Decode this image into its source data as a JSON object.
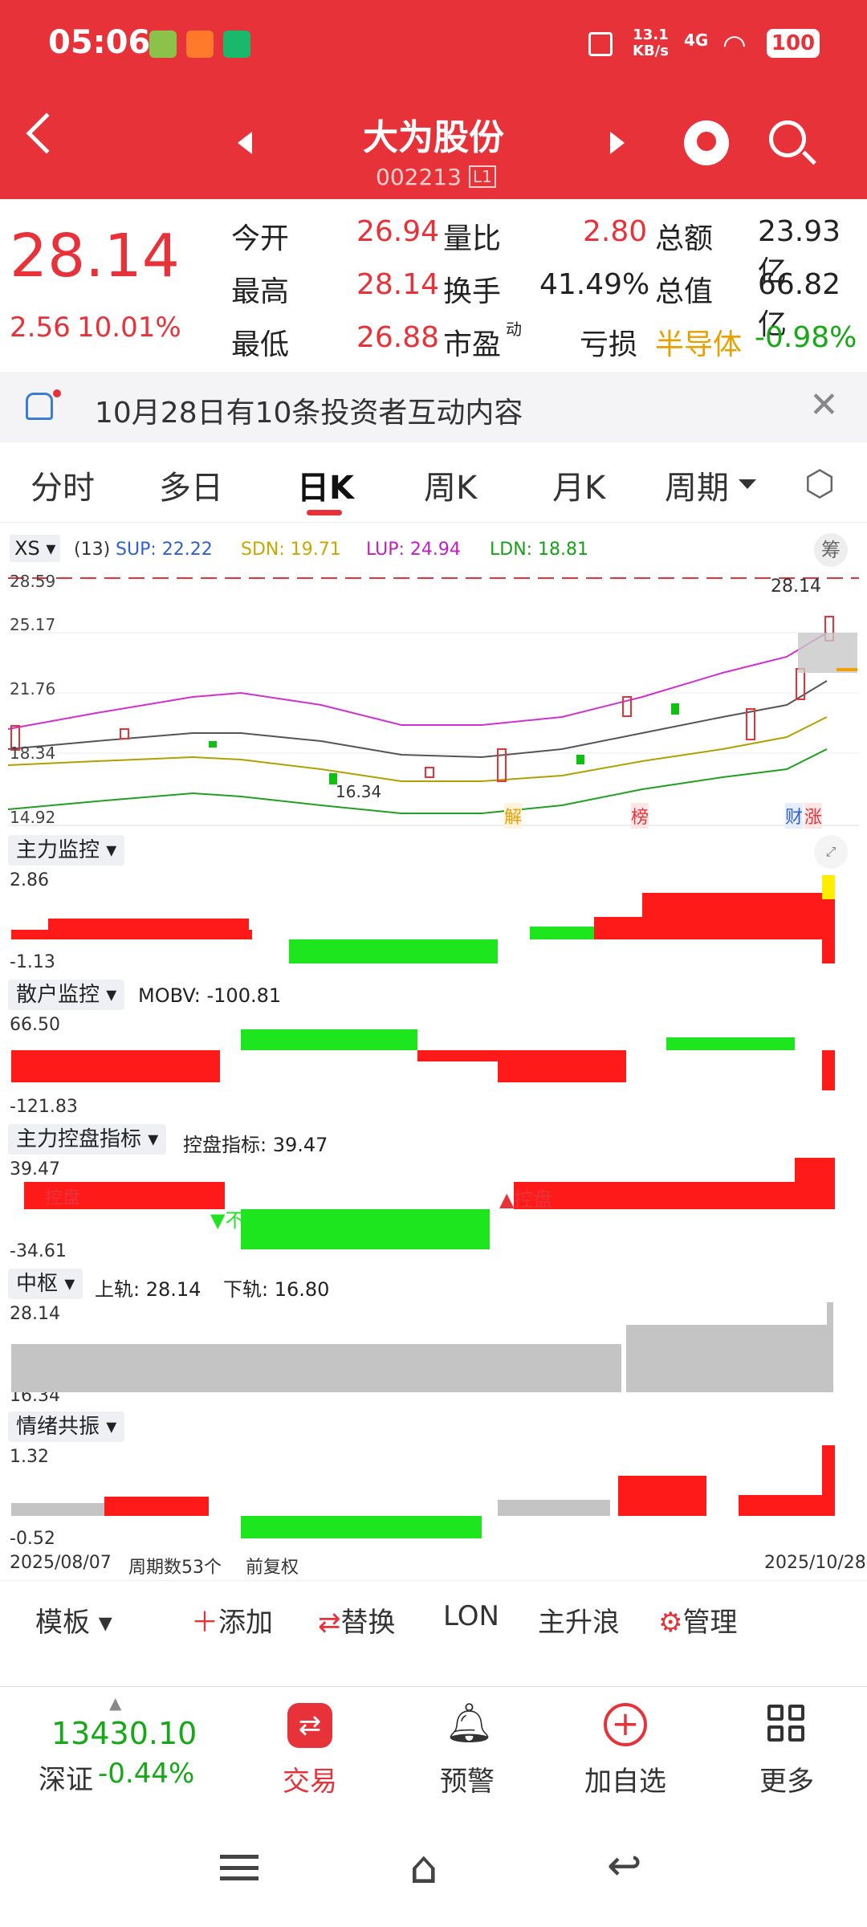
{
  "status_bar": {
    "time": "05:06",
    "speed": "13.1",
    "speed_unit": "KB/s",
    "network": "4G",
    "battery": "100"
  },
  "header": {
    "title": "大为股份",
    "code": "002213",
    "badge": "L1"
  },
  "quote": {
    "price": "28.14",
    "change": "2.56",
    "change_pct": "10.01%",
    "rows": [
      [
        {
          "label": "今开",
          "value": "26.94"
        },
        {
          "label": "量比",
          "value": "2.80"
        },
        {
          "label": "总额",
          "value": "23.93亿"
        }
      ],
      [
        {
          "label": "最高",
          "value": "28.14"
        },
        {
          "label": "换手",
          "value": "41.49%"
        },
        {
          "label": "总值",
          "value": "66.82亿"
        }
      ],
      [
        {
          "label": "最低",
          "value": "26.88"
        },
        {
          "label": "市盈",
          "value": "亏损",
          "sup": "动"
        },
        {
          "label": "半导体",
          "value": "-0.98%"
        }
      ]
    ]
  },
  "notice": {
    "text": "10月28日有10条投资者互动内容"
  },
  "tabs": [
    "分时",
    "多日",
    "日K",
    "周K",
    "月K",
    "周期"
  ],
  "active_tab": "日K",
  "kline": {
    "indicator": "XS",
    "params": "(13)",
    "sup": "SUP: 22.22",
    "sdn": "SDN: 19.71",
    "lup": "LUP: 24.94",
    "ldn": "LDN: 18.81",
    "y_labels": [
      "28.59",
      "25.17",
      "21.76",
      "18.34",
      "14.92"
    ],
    "last_price": "28.14",
    "low_marker": "16.34",
    "chip_btn": "筹",
    "events": [
      "解",
      "榜",
      "财",
      "涨"
    ]
  },
  "panel1": {
    "title": "主力监控",
    "max": "2.86",
    "min": "-1.13"
  },
  "panel2": {
    "title": "散户监控",
    "subtitle": "MOBV: -100.81",
    "max": "66.50",
    "min": "-121.83"
  },
  "panel3": {
    "title": "主力控盘指标",
    "subtitle": "控盘指标: 39.47",
    "max": "39.47",
    "min": "-34.61",
    "tag_a": "控盘",
    "tag_b": "▼不控盘",
    "tag_c": "▲控盘"
  },
  "panel4": {
    "title": "中枢",
    "upper": "上轨: 28.14",
    "lower": "下轨: 16.80",
    "max": "28.14",
    "min": "16.34"
  },
  "panel5": {
    "title": "情绪共振",
    "max": "1.32",
    "min": "-0.52"
  },
  "footer_axis": {
    "start": "2025/08/07",
    "count": "周期数53个",
    "adjust": "前复权",
    "end": "2025/10/28"
  },
  "toolbar": {
    "template": "模板",
    "add": "添加",
    "replace": "替换",
    "lon": "LON",
    "wave": "主升浪",
    "manage": "管理"
  },
  "bottom_nav": {
    "index_value": "13430.10",
    "index_name": "深证",
    "index_change": "-0.44%",
    "trade": "交易",
    "alert": "预警",
    "add_watch": "加自选",
    "more": "更多"
  },
  "colors": {
    "brand": "#e8323a",
    "up": "#ff1a1a",
    "down": "#1ee61e"
  }
}
